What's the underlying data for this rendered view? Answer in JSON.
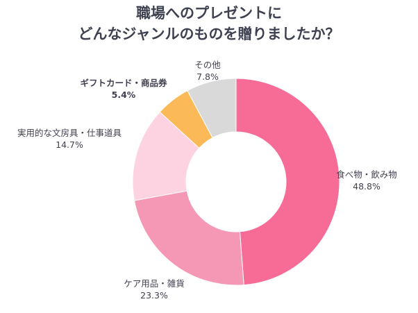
{
  "chart_data": {
    "type": "pie",
    "donut": true,
    "title": [
      "職場へのプレゼントに",
      "どんなジャンルのものを贈りましたか？"
    ],
    "slices": [
      {
        "label": "食べ物・飲み物",
        "value": 48.8,
        "value_label": "48.8%",
        "color": "#f76c96"
      },
      {
        "label": "ケア用品・雑貨",
        "value": 23.3,
        "value_label": "23.3%",
        "color": "#f598b6"
      },
      {
        "label": "実用的な文房具・仕事道具",
        "value": 14.7,
        "value_label": "14.7%",
        "color": "#fdd3e1"
      },
      {
        "label": "ギフトカード・商品券",
        "value": 5.4,
        "value_label": "5.4%",
        "color": "#fbb958"
      },
      {
        "label": "その他",
        "value": 7.8,
        "value_label": "7.8%",
        "color": "#d9d9d9"
      }
    ],
    "start": "12 o'clock",
    "direction": "clockwise"
  }
}
